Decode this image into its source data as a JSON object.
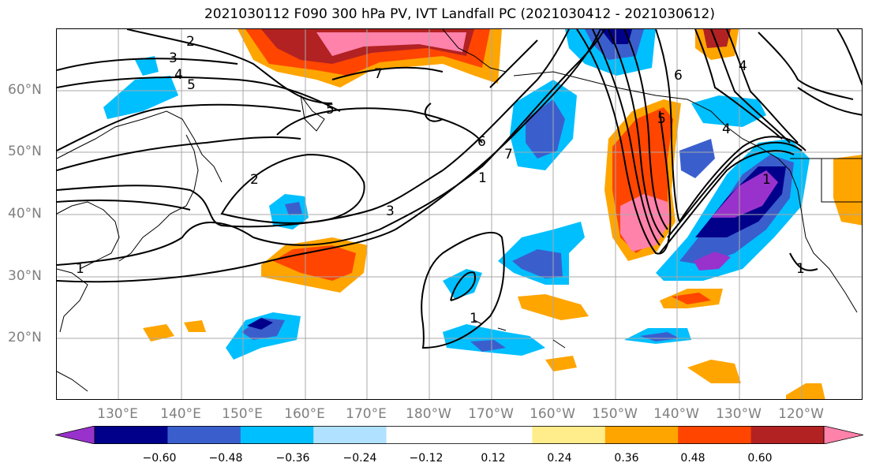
{
  "title": "2021030112 F090 300 hPa PV, IVT Landfall PC (2021030412 - 2021030612)",
  "latitude_labels": [
    "60°N",
    "50°N",
    "40°N",
    "30°N",
    "20°N"
  ],
  "longitude_labels": [
    "130°E",
    "140°E",
    "150°E",
    "160°E",
    "170°E",
    "180°W",
    "170°W",
    "160°W",
    "150°W",
    "140°W",
    "130°W",
    "120°W"
  ],
  "contour_labels": [
    "1",
    "2",
    "3",
    "4",
    "5",
    "5",
    "6",
    "7",
    "7",
    "6",
    "5",
    "4",
    "3",
    "2",
    "1",
    "1",
    "1",
    "1",
    "4"
  ],
  "colorbar": {
    "colors": [
      "#9932cc",
      "#00008b",
      "#3a5fcd",
      "#00bfff",
      "#b0e2ff",
      "#ffffff",
      "#ffffff",
      "#ffec8b",
      "#ffa500",
      "#ff4500",
      "#b22222",
      "#ff82ab"
    ],
    "tick_labels": [
      "−0.60",
      "−0.48",
      "−0.36",
      "−0.24",
      "−0.12",
      "0.12",
      "0.24",
      "0.36",
      "0.48",
      "0.60"
    ]
  }
}
